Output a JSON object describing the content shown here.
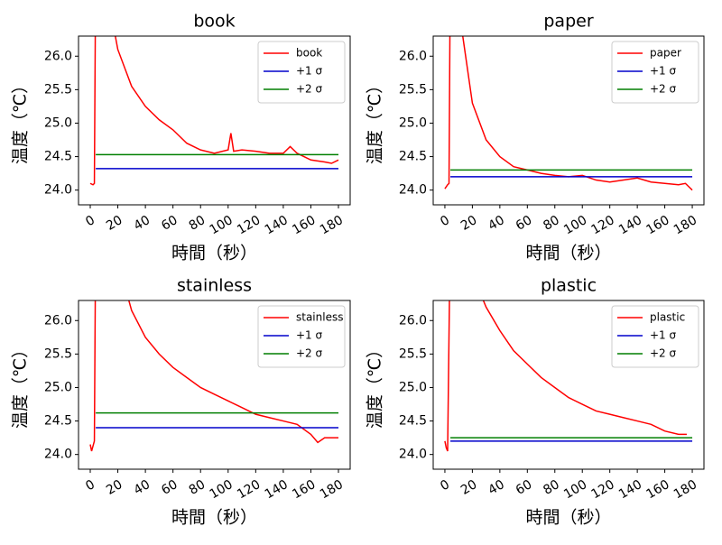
{
  "chart_data": [
    {
      "type": "line",
      "title": "book",
      "xlabel": "時間（秒）",
      "ylabel": "温度（℃）",
      "xlim": [
        -8.5,
        188.5
      ],
      "ylim": [
        23.78,
        26.3
      ],
      "xticks": [
        0,
        20,
        40,
        60,
        80,
        100,
        120,
        140,
        160,
        180
      ],
      "yticks": [
        {
          "value": 24.0,
          "label": "24.0"
        },
        {
          "value": 24.5,
          "label": "24.5"
        },
        {
          "value": 25.0,
          "label": "25.0"
        },
        {
          "value": 25.5,
          "label": "25.5"
        },
        {
          "value": 26.0,
          "label": "26.0"
        }
      ],
      "legend": "upper right",
      "grid": false,
      "series": [
        {
          "name": "book",
          "color": "#ff0000",
          "x": [
            0,
            2,
            3,
            4,
            10,
            20,
            30,
            40,
            50,
            60,
            70,
            80,
            90,
            100,
            102,
            104,
            110,
            120,
            130,
            140,
            145,
            150,
            160,
            170,
            175,
            180
          ],
          "values": [
            24.1,
            24.08,
            24.1,
            27.5,
            27.2,
            26.1,
            25.55,
            25.25,
            25.05,
            24.9,
            24.7,
            24.6,
            24.55,
            24.6,
            24.85,
            24.58,
            24.6,
            24.58,
            24.55,
            24.55,
            24.65,
            24.55,
            24.45,
            24.42,
            24.4,
            24.45
          ]
        },
        {
          "name": "+1 σ",
          "color": "#0000cc",
          "x": [
            4,
            180
          ],
          "values": [
            24.32,
            24.32
          ]
        },
        {
          "name": "+2 σ",
          "color": "#007f00",
          "x": [
            4,
            180
          ],
          "values": [
            24.53,
            24.53
          ]
        }
      ]
    },
    {
      "type": "line",
      "title": "paper",
      "xlabel": "時間（秒）",
      "ylabel": "温度（℃）",
      "xlim": [
        -8.5,
        188.5
      ],
      "ylim": [
        23.78,
        26.3
      ],
      "xticks": [
        0,
        20,
        40,
        60,
        80,
        100,
        120,
        140,
        160,
        180
      ],
      "yticks": [
        {
          "value": 24.0,
          "label": "24.0"
        },
        {
          "value": 24.5,
          "label": "24.5"
        },
        {
          "value": 25.0,
          "label": "25.0"
        },
        {
          "value": 25.5,
          "label": "25.5"
        },
        {
          "value": 26.0,
          "label": "26.0"
        }
      ],
      "legend": "upper right",
      "grid": false,
      "series": [
        {
          "name": "paper",
          "color": "#ff0000",
          "x": [
            0,
            2,
            3,
            4,
            8,
            13,
            20,
            30,
            40,
            50,
            60,
            70,
            80,
            90,
            100,
            110,
            120,
            130,
            140,
            150,
            160,
            170,
            175,
            180
          ],
          "values": [
            24.02,
            24.08,
            24.1,
            27.5,
            27.0,
            26.3,
            25.3,
            24.75,
            24.5,
            24.35,
            24.3,
            24.25,
            24.22,
            24.2,
            24.22,
            24.15,
            24.12,
            24.15,
            24.18,
            24.12,
            24.1,
            24.08,
            24.1,
            24.0
          ]
        },
        {
          "name": "+1 σ",
          "color": "#0000cc",
          "x": [
            4,
            180
          ],
          "values": [
            24.2,
            24.2
          ]
        },
        {
          "name": "+2 σ",
          "color": "#007f00",
          "x": [
            4,
            180
          ],
          "values": [
            24.3,
            24.3
          ]
        }
      ]
    },
    {
      "type": "line",
      "title": "stainless",
      "xlabel": "時間（秒）",
      "ylabel": "温度（℃）",
      "xlim": [
        -8.5,
        188.5
      ],
      "ylim": [
        23.78,
        26.3
      ],
      "xticks": [
        0,
        20,
        40,
        60,
        80,
        100,
        120,
        140,
        160,
        180
      ],
      "yticks": [
        {
          "value": 24.0,
          "label": "24.0"
        },
        {
          "value": 24.5,
          "label": "24.5"
        },
        {
          "value": 25.0,
          "label": "25.0"
        },
        {
          "value": 25.5,
          "label": "25.5"
        },
        {
          "value": 26.0,
          "label": "26.0"
        }
      ],
      "legend": "upper right",
      "grid": false,
      "series": [
        {
          "name": "stainless",
          "color": "#ff0000",
          "x": [
            0,
            1,
            3,
            4,
            15,
            28,
            30,
            40,
            50,
            60,
            70,
            80,
            90,
            100,
            110,
            120,
            130,
            140,
            150,
            160,
            165,
            170,
            180
          ],
          "values": [
            24.15,
            24.05,
            24.2,
            27.5,
            27.3,
            26.3,
            26.15,
            25.75,
            25.5,
            25.3,
            25.15,
            25.0,
            24.9,
            24.8,
            24.7,
            24.6,
            24.55,
            24.5,
            24.45,
            24.3,
            24.18,
            24.25,
            24.25
          ]
        },
        {
          "name": "+1 σ",
          "color": "#0000cc",
          "x": [
            4,
            180
          ],
          "values": [
            24.4,
            24.4
          ]
        },
        {
          "name": "+2 σ",
          "color": "#007f00",
          "x": [
            4,
            180
          ],
          "values": [
            24.62,
            24.62
          ]
        }
      ]
    },
    {
      "type": "line",
      "title": "plastic",
      "xlabel": "時間（秒）",
      "ylabel": "温度（℃）",
      "xlim": [
        -8.5,
        188.5
      ],
      "ylim": [
        23.78,
        26.3
      ],
      "xticks": [
        0,
        20,
        40,
        60,
        80,
        100,
        120,
        140,
        160,
        180
      ],
      "yticks": [
        {
          "value": 24.0,
          "label": "24.0"
        },
        {
          "value": 24.5,
          "label": "24.5"
        },
        {
          "value": 25.0,
          "label": "25.0"
        },
        {
          "value": 25.5,
          "label": "25.5"
        },
        {
          "value": 26.0,
          "label": "26.0"
        }
      ],
      "legend": "upper right",
      "grid": false,
      "series": [
        {
          "name": "plastic",
          "color": "#ff0000",
          "x": [
            0,
            1,
            2,
            4,
            15,
            28,
            30,
            40,
            50,
            60,
            70,
            80,
            90,
            100,
            110,
            120,
            130,
            140,
            150,
            160,
            170,
            176
          ],
          "values": [
            24.2,
            24.1,
            24.05,
            27.5,
            27.3,
            26.3,
            26.2,
            25.85,
            25.55,
            25.35,
            25.15,
            25.0,
            24.85,
            24.75,
            24.65,
            24.6,
            24.55,
            24.5,
            24.45,
            24.35,
            24.3,
            24.3
          ]
        },
        {
          "name": "+1 σ",
          "color": "#0000cc",
          "x": [
            4,
            180
          ],
          "values": [
            24.2,
            24.2
          ]
        },
        {
          "name": "+2 σ",
          "color": "#007f00",
          "x": [
            4,
            180
          ],
          "values": [
            24.25,
            24.25
          ]
        }
      ]
    }
  ]
}
